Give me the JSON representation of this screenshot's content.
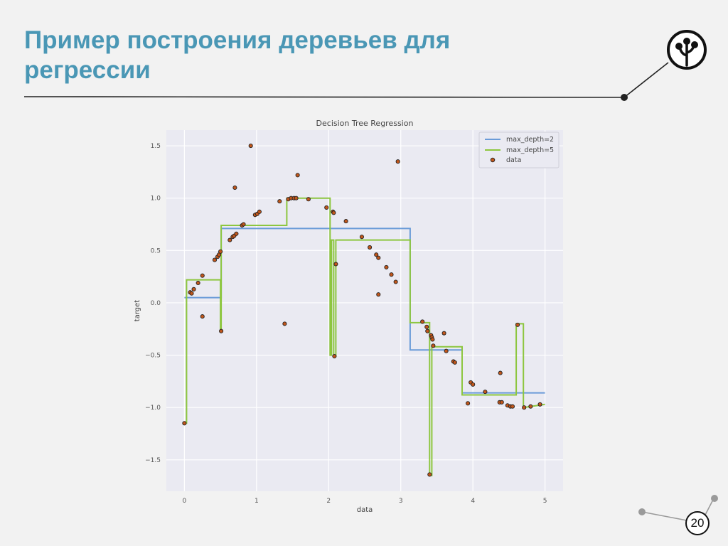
{
  "slide": {
    "title": "Пример построения деревьев для регрессии",
    "page_number": "20",
    "logo_icon": "tree-logo-icon",
    "title_color": "#4a97b5"
  },
  "chart_data": {
    "type": "line",
    "title": "Decision Tree Regression",
    "xlabel": "data",
    "ylabel": "target",
    "xlim": [
      -0.25,
      5.25
    ],
    "ylim": [
      -1.8,
      1.65
    ],
    "xticks": [
      0,
      1,
      2,
      3,
      4,
      5
    ],
    "xtick_labels": [
      "0",
      "1",
      "2",
      "3",
      "4",
      "5"
    ],
    "yticks": [
      1.5,
      1.0,
      0.5,
      0.0,
      -0.5,
      -1.0,
      -1.5
    ],
    "ytick_labels": [
      "1.5",
      "1.0",
      "0.5",
      "0.0",
      "−0.5",
      "−1.0",
      "−1.5"
    ],
    "grid": true,
    "legend_position": "top-right",
    "series": [
      {
        "name": "max_depth=2",
        "kind": "step-line",
        "color": "#6a9bd8",
        "x": [
          0.0,
          0.51,
          0.51,
          3.13,
          3.13,
          3.85,
          3.85,
          5.0
        ],
        "y": [
          0.05,
          0.05,
          0.71,
          0.71,
          -0.45,
          -0.45,
          -0.86,
          -0.86
        ]
      },
      {
        "name": "max_depth=5",
        "kind": "step-line",
        "color": "#8dc63f",
        "x": [
          0.0,
          0.03,
          0.03,
          0.5,
          0.5,
          0.51,
          0.51,
          1.42,
          1.42,
          2.02,
          2.02,
          2.04,
          2.04,
          2.07,
          2.07,
          2.1,
          2.1,
          3.13,
          3.13,
          3.4,
          3.4,
          3.43,
          3.43,
          3.46,
          3.46,
          3.85,
          3.85,
          4.6,
          4.6,
          4.7,
          4.7,
          5.0
        ],
        "y": [
          -1.15,
          -1.15,
          0.22,
          0.22,
          -0.27,
          -0.27,
          0.74,
          0.74,
          1.0,
          1.0,
          -0.5,
          -0.5,
          0.6,
          0.6,
          -0.51,
          -0.51,
          0.6,
          0.6,
          -0.19,
          -0.19,
          -1.65,
          -1.65,
          -0.42,
          -0.42,
          -0.42,
          -0.42,
          -0.88,
          -0.88,
          -0.2,
          -0.2,
          -1.0,
          -0.97
        ]
      },
      {
        "name": "data",
        "kind": "scatter",
        "color": "#c1561b",
        "x": [
          0.0,
          0.08,
          0.1,
          0.13,
          0.19,
          0.25,
          0.25,
          0.42,
          0.46,
          0.48,
          0.5,
          0.51,
          0.63,
          0.67,
          0.69,
          0.7,
          0.72,
          0.8,
          0.82,
          0.92,
          0.98,
          1.01,
          1.04,
          1.32,
          1.39,
          1.44,
          1.48,
          1.52,
          1.55,
          1.57,
          1.72,
          1.97,
          2.06,
          2.07,
          2.08,
          2.1,
          2.24,
          2.46,
          2.57,
          2.66,
          2.69,
          2.69,
          2.8,
          2.87,
          2.93,
          2.96,
          3.3,
          3.36,
          3.37,
          3.4,
          3.42,
          3.43,
          3.44,
          3.45,
          3.6,
          3.63,
          3.73,
          3.75,
          3.93,
          3.97,
          4.0,
          4.17,
          4.37,
          4.38,
          4.4,
          4.48,
          4.52,
          4.55,
          4.62,
          4.71,
          4.8,
          4.93
        ],
        "y": [
          -1.15,
          0.1,
          0.09,
          0.13,
          0.19,
          0.26,
          -0.13,
          0.41,
          0.44,
          0.46,
          0.49,
          -0.27,
          0.6,
          0.63,
          0.64,
          1.1,
          0.66,
          0.74,
          0.75,
          1.5,
          0.84,
          0.85,
          0.87,
          0.97,
          -0.2,
          0.99,
          1.0,
          1.0,
          1.0,
          1.22,
          0.99,
          0.91,
          0.87,
          0.86,
          -0.51,
          0.37,
          0.78,
          0.63,
          0.53,
          0.46,
          0.43,
          0.08,
          0.34,
          0.27,
          0.2,
          1.35,
          -0.18,
          -0.23,
          -0.27,
          -1.64,
          -0.31,
          -0.33,
          -0.35,
          -0.41,
          -0.29,
          -0.46,
          -0.56,
          -0.57,
          -0.96,
          -0.76,
          -0.78,
          -0.85,
          -0.95,
          -0.67,
          -0.95,
          -0.98,
          -0.99,
          -0.99,
          -0.21,
          -1.0,
          -0.99,
          -0.97
        ]
      }
    ]
  }
}
